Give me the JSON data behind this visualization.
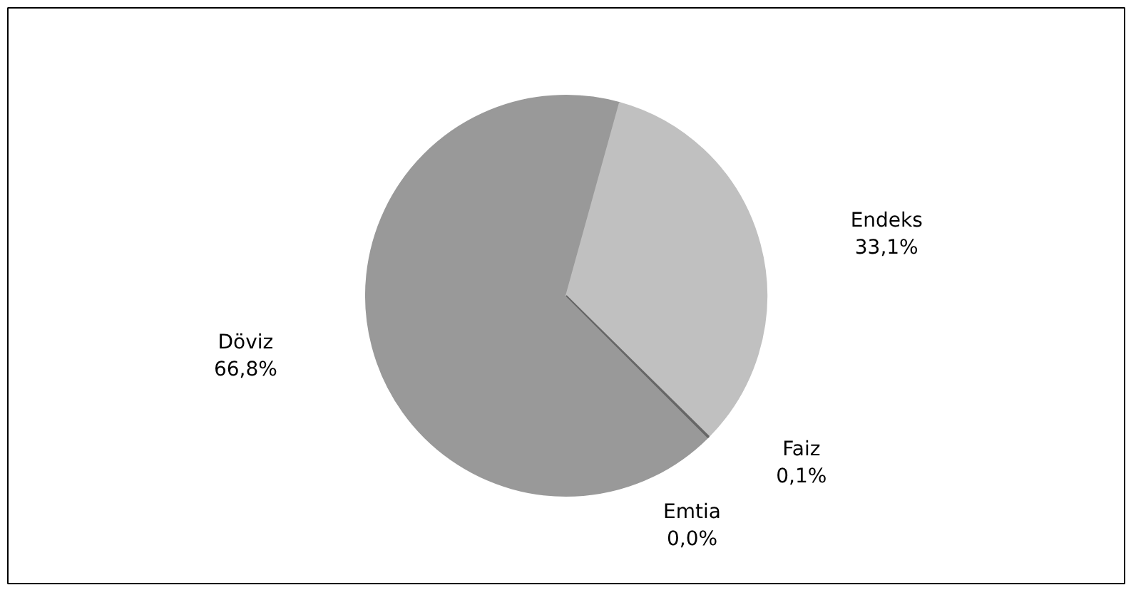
{
  "chart_data": {
    "type": "pie",
    "categories": [
      "Döviz",
      "Endeks",
      "Faiz",
      "Emtia"
    ],
    "values": [
      66.8,
      33.1,
      0.1,
      0.0
    ],
    "value_labels": [
      "66,8%",
      "33,1%",
      "0,1%",
      "0,0%"
    ],
    "colors": [
      "#999999",
      "#c0c0c0",
      "#666666",
      "#444444"
    ]
  }
}
